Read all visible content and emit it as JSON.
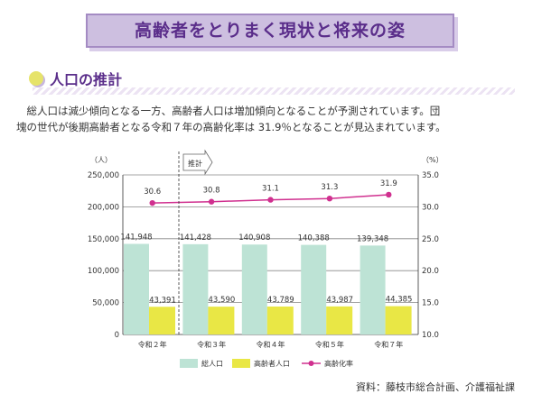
{
  "header": {
    "title": "高齢者をとりまく現状と将来の姿"
  },
  "section": {
    "title": "人口の推計"
  },
  "paragraph": {
    "line1": "　総人口は減少傾向となる一方、高齢者人口は増加傾向となることが予測されています。団",
    "line2": "塊の世代が後期高齢者となる令和７年の高齢化率は 31.9％となることが見込まれています。"
  },
  "chart_data": {
    "type": "bar+line",
    "categories": [
      "令和２年",
      "令和３年",
      "令和４年",
      "令和５年",
      "令和７年"
    ],
    "series": [
      {
        "name": "総人口",
        "type": "bar",
        "axis": "left",
        "color": "#bde3d5",
        "values": [
          141948,
          141428,
          140908,
          140388,
          139348
        ],
        "labels": [
          "141,948",
          "141,428",
          "140,908",
          "140,388",
          "139,348"
        ]
      },
      {
        "name": "高齢者人口",
        "type": "bar",
        "axis": "left",
        "color": "#e9e745",
        "values": [
          43391,
          43590,
          43789,
          43987,
          44385
        ],
        "labels": [
          "43,391",
          "43,590",
          "43,789",
          "43,987",
          "44,385"
        ]
      },
      {
        "name": "高齢化率",
        "type": "line",
        "axis": "right",
        "color": "#d0308f",
        "values": [
          30.6,
          30.8,
          31.1,
          31.3,
          31.9
        ],
        "labels": [
          "30.6",
          "30.8",
          "31.1",
          "31.3",
          "31.9"
        ]
      }
    ],
    "y_left": {
      "unit": "（人）",
      "range": [
        0,
        250000
      ],
      "ticks": [
        "0",
        "50,000",
        "100,000",
        "150,000",
        "200,000",
        "250,000"
      ]
    },
    "y_right": {
      "unit": "（%）",
      "range": [
        10,
        35
      ],
      "ticks": [
        "10.0",
        "15.0",
        "20.0",
        "25.0",
        "30.0",
        "35.0"
      ]
    },
    "annotation": "推計",
    "grid": true,
    "legend": "bottom"
  },
  "source": "資料：藤枝市総合計画、介護福祉課"
}
